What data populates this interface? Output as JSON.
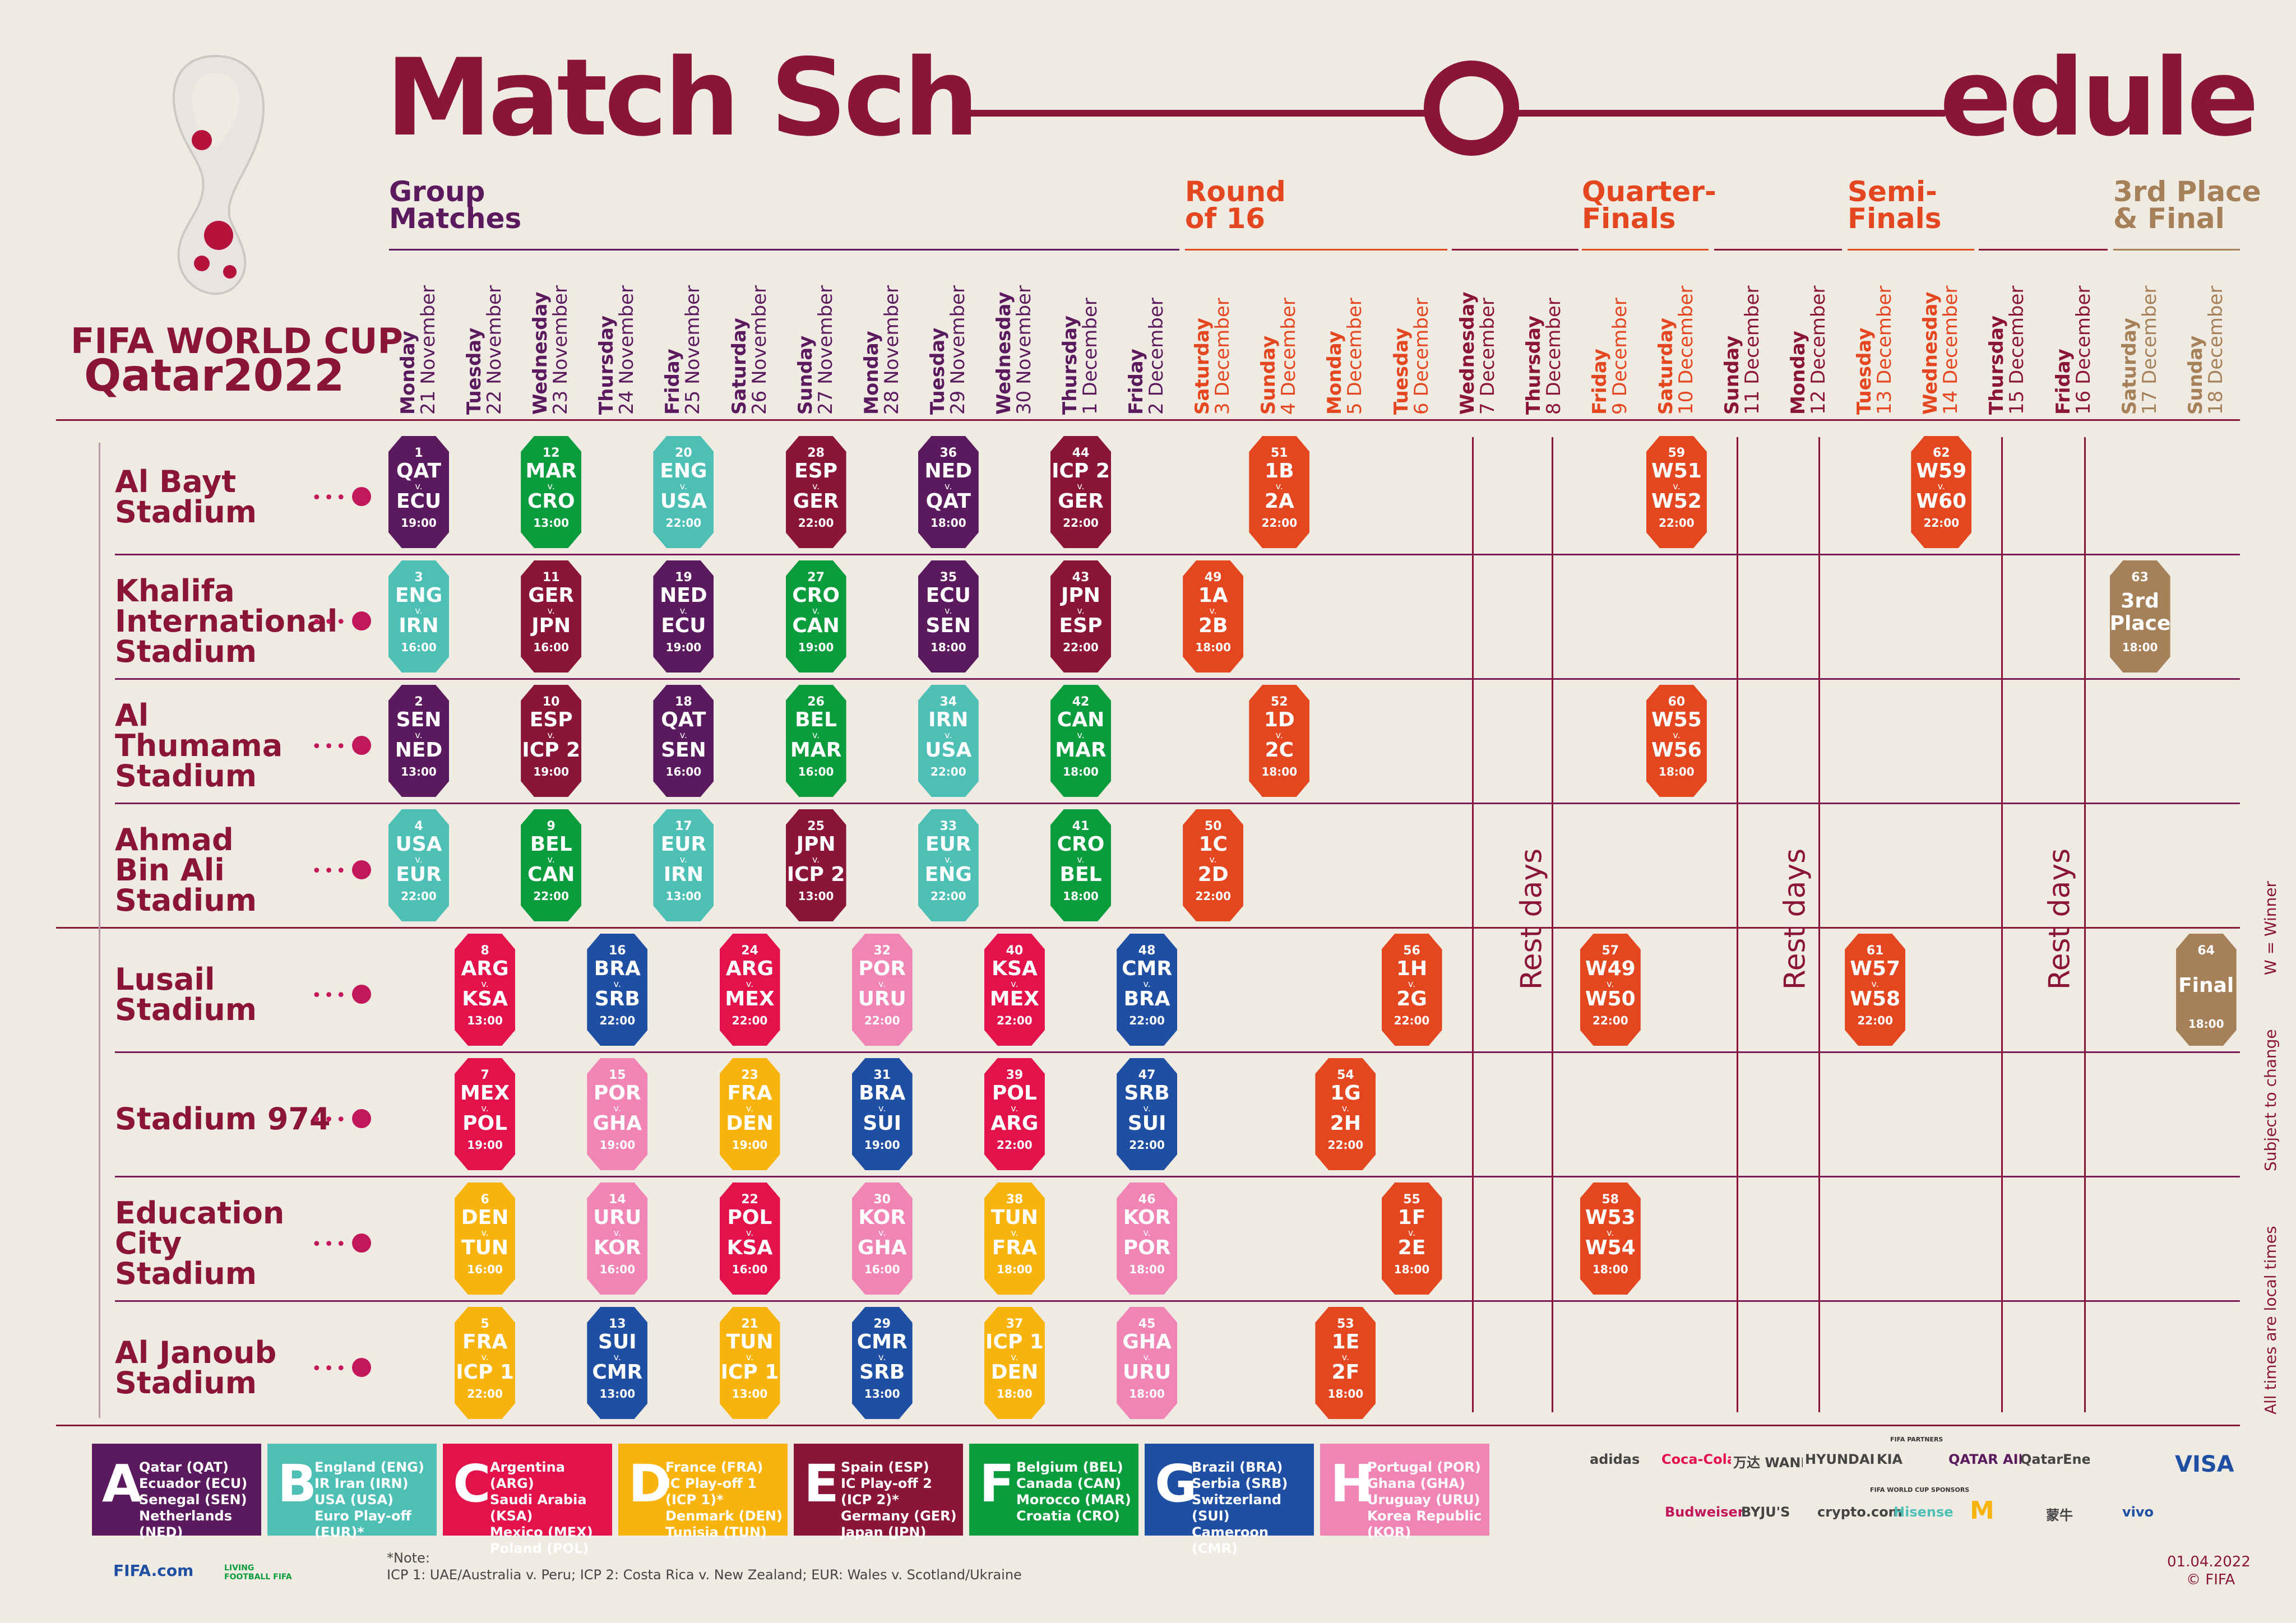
{
  "title": {
    "left": "Match Sch",
    "right": "edule"
  },
  "brand": {
    "line1": "FIFA WORLD CUP",
    "line2": "Qatar2022"
  },
  "stages": [
    {
      "label": "Group\nMatches",
      "color": "#5b1a5e"
    },
    {
      "label": "Round\nof 16",
      "color": "#e4471f"
    },
    {
      "label": "Quarter-\nFinals",
      "color": "#e4471f"
    },
    {
      "label": "Semi-\nFinals",
      "color": "#e4471f"
    },
    {
      "label": "3rd Place\n& Final",
      "color": "#a68058"
    }
  ],
  "days": [
    {
      "wd": "Monday",
      "dt": "21 November",
      "color": "#5b1a5e"
    },
    {
      "wd": "Tuesday",
      "dt": "22 November",
      "color": "#5b1a5e"
    },
    {
      "wd": "Wednesday",
      "dt": "23 November",
      "color": "#5b1a5e"
    },
    {
      "wd": "Thursday",
      "dt": "24 November",
      "color": "#5b1a5e"
    },
    {
      "wd": "Friday",
      "dt": "25 November",
      "color": "#5b1a5e"
    },
    {
      "wd": "Saturday",
      "dt": "26 November",
      "color": "#5b1a5e"
    },
    {
      "wd": "Sunday",
      "dt": "27 November",
      "color": "#5b1a5e"
    },
    {
      "wd": "Monday",
      "dt": "28 November",
      "color": "#5b1a5e"
    },
    {
      "wd": "Tuesday",
      "dt": "29 November",
      "color": "#5b1a5e"
    },
    {
      "wd": "Wednesday",
      "dt": "30 November",
      "color": "#5b1a5e"
    },
    {
      "wd": "Thursday",
      "dt": "1 December",
      "color": "#5b1a5e"
    },
    {
      "wd": "Friday",
      "dt": "2 December",
      "color": "#5b1a5e"
    },
    {
      "wd": "Saturday",
      "dt": "3 December",
      "color": "#e4471f"
    },
    {
      "wd": "Sunday",
      "dt": "4 December",
      "color": "#e4471f"
    },
    {
      "wd": "Monday",
      "dt": "5 December",
      "color": "#e4471f"
    },
    {
      "wd": "Tuesday",
      "dt": "6 December",
      "color": "#e4471f"
    },
    {
      "wd": "Wednesday",
      "dt": "7 December",
      "color": "#8a1538"
    },
    {
      "wd": "Thursday",
      "dt": "8 December",
      "color": "#8a1538"
    },
    {
      "wd": "Friday",
      "dt": "9 December",
      "color": "#e4471f"
    },
    {
      "wd": "Saturday",
      "dt": "10 December",
      "color": "#e4471f"
    },
    {
      "wd": "Sunday",
      "dt": "11 December",
      "color": "#8a1538"
    },
    {
      "wd": "Monday",
      "dt": "12 December",
      "color": "#8a1538"
    },
    {
      "wd": "Tuesday",
      "dt": "13 December",
      "color": "#e4471f"
    },
    {
      "wd": "Wednesday",
      "dt": "14 December",
      "color": "#e4471f"
    },
    {
      "wd": "Thursday",
      "dt": "15 December",
      "color": "#8a1538"
    },
    {
      "wd": "Friday",
      "dt": "16 December",
      "color": "#8a1538"
    },
    {
      "wd": "Saturday",
      "dt": "17 December",
      "color": "#a68058"
    },
    {
      "wd": "Sunday",
      "dt": "18 December",
      "color": "#a68058"
    }
  ],
  "venues": [
    "Al Bayt\nStadium",
    "Khalifa\nInternational\nStadium",
    "Al\nThumama\nStadium",
    "Ahmad\nBin Ali\nStadium",
    "Lusail\nStadium",
    "Stadium 974",
    "Education\nCity\nStadium",
    "Al Janoub\nStadium"
  ],
  "rest_label": "Rest days",
  "matches": [
    {
      "n": "1",
      "a": "QAT",
      "b": "ECU",
      "t": "19:00",
      "d": 0,
      "v": 0,
      "c": "#5b1a5e"
    },
    {
      "n": "12",
      "a": "MAR",
      "b": "CRO",
      "t": "13:00",
      "d": 2,
      "v": 0,
      "c": "#0b9c3d"
    },
    {
      "n": "20",
      "a": "ENG",
      "b": "USA",
      "t": "22:00",
      "d": 4,
      "v": 0,
      "c": "#4dbfb4"
    },
    {
      "n": "28",
      "a": "ESP",
      "b": "GER",
      "t": "22:00",
      "d": 6,
      "v": 0,
      "c": "#8a1538"
    },
    {
      "n": "36",
      "a": "NED",
      "b": "QAT",
      "t": "18:00",
      "d": 8,
      "v": 0,
      "c": "#5b1a5e"
    },
    {
      "n": "44",
      "a": "ICP 2",
      "b": "GER",
      "t": "22:00",
      "d": 10,
      "v": 0,
      "c": "#8a1538"
    },
    {
      "n": "51",
      "a": "1B",
      "b": "2A",
      "t": "22:00",
      "d": 13,
      "v": 0,
      "c": "#e4471f"
    },
    {
      "n": "59",
      "a": "W51",
      "b": "W52",
      "t": "22:00",
      "d": 19,
      "v": 0,
      "c": "#e4471f"
    },
    {
      "n": "62",
      "a": "W59",
      "b": "W60",
      "t": "22:00",
      "d": 23,
      "v": 0,
      "c": "#e4471f"
    },
    {
      "n": "3",
      "a": "ENG",
      "b": "IRN",
      "t": "16:00",
      "d": 0,
      "v": 1,
      "c": "#4dbfb4"
    },
    {
      "n": "11",
      "a": "GER",
      "b": "JPN",
      "t": "16:00",
      "d": 2,
      "v": 1,
      "c": "#8a1538"
    },
    {
      "n": "19",
      "a": "NED",
      "b": "ECU",
      "t": "19:00",
      "d": 4,
      "v": 1,
      "c": "#5b1a5e"
    },
    {
      "n": "27",
      "a": "CRO",
      "b": "CAN",
      "t": "19:00",
      "d": 6,
      "v": 1,
      "c": "#0b9c3d"
    },
    {
      "n": "35",
      "a": "ECU",
      "b": "SEN",
      "t": "18:00",
      "d": 8,
      "v": 1,
      "c": "#5b1a5e"
    },
    {
      "n": "43",
      "a": "JPN",
      "b": "ESP",
      "t": "22:00",
      "d": 10,
      "v": 1,
      "c": "#8a1538"
    },
    {
      "n": "49",
      "a": "1A",
      "b": "2B",
      "t": "18:00",
      "d": 12,
      "v": 1,
      "c": "#e4471f"
    },
    {
      "n": "63",
      "a": "3rd",
      "b": "Place",
      "t": "18:00",
      "d": 26,
      "v": 1,
      "c": "#a68058",
      "special": true
    },
    {
      "n": "2",
      "a": "SEN",
      "b": "NED",
      "t": "13:00",
      "d": 0,
      "v": 2,
      "c": "#5b1a5e"
    },
    {
      "n": "10",
      "a": "ESP",
      "b": "ICP 2",
      "t": "19:00",
      "d": 2,
      "v": 2,
      "c": "#8a1538"
    },
    {
      "n": "18",
      "a": "QAT",
      "b": "SEN",
      "t": "16:00",
      "d": 4,
      "v": 2,
      "c": "#5b1a5e"
    },
    {
      "n": "26",
      "a": "BEL",
      "b": "MAR",
      "t": "16:00",
      "d": 6,
      "v": 2,
      "c": "#0b9c3d"
    },
    {
      "n": "34",
      "a": "IRN",
      "b": "USA",
      "t": "22:00",
      "d": 8,
      "v": 2,
      "c": "#4dbfb4"
    },
    {
      "n": "42",
      "a": "CAN",
      "b": "MAR",
      "t": "18:00",
      "d": 10,
      "v": 2,
      "c": "#0b9c3d"
    },
    {
      "n": "52",
      "a": "1D",
      "b": "2C",
      "t": "18:00",
      "d": 13,
      "v": 2,
      "c": "#e4471f"
    },
    {
      "n": "60",
      "a": "W55",
      "b": "W56",
      "t": "18:00",
      "d": 19,
      "v": 2,
      "c": "#e4471f"
    },
    {
      "n": "4",
      "a": "USA",
      "b": "EUR",
      "t": "22:00",
      "d": 0,
      "v": 3,
      "c": "#4dbfb4"
    },
    {
      "n": "9",
      "a": "BEL",
      "b": "CAN",
      "t": "22:00",
      "d": 2,
      "v": 3,
      "c": "#0b9c3d"
    },
    {
      "n": "17",
      "a": "EUR",
      "b": "IRN",
      "t": "13:00",
      "d": 4,
      "v": 3,
      "c": "#4dbfb4"
    },
    {
      "n": "25",
      "a": "JPN",
      "b": "ICP 2",
      "t": "13:00",
      "d": 6,
      "v": 3,
      "c": "#8a1538"
    },
    {
      "n": "33",
      "a": "EUR",
      "b": "ENG",
      "t": "22:00",
      "d": 8,
      "v": 3,
      "c": "#4dbfb4"
    },
    {
      "n": "41",
      "a": "CRO",
      "b": "BEL",
      "t": "18:00",
      "d": 10,
      "v": 3,
      "c": "#0b9c3d"
    },
    {
      "n": "50",
      "a": "1C",
      "b": "2D",
      "t": "22:00",
      "d": 12,
      "v": 3,
      "c": "#e4471f"
    },
    {
      "n": "8",
      "a": "ARG",
      "b": "KSA",
      "t": "13:00",
      "d": 1,
      "v": 4,
      "c": "#e3124b"
    },
    {
      "n": "16",
      "a": "BRA",
      "b": "SRB",
      "t": "22:00",
      "d": 3,
      "v": 4,
      "c": "#1f4fa3"
    },
    {
      "n": "24",
      "a": "ARG",
      "b": "MEX",
      "t": "22:00",
      "d": 5,
      "v": 4,
      "c": "#e3124b"
    },
    {
      "n": "32",
      "a": "POR",
      "b": "URU",
      "t": "22:00",
      "d": 7,
      "v": 4,
      "c": "#ef84b5"
    },
    {
      "n": "40",
      "a": "KSA",
      "b": "MEX",
      "t": "22:00",
      "d": 9,
      "v": 4,
      "c": "#e3124b"
    },
    {
      "n": "48",
      "a": "CMR",
      "b": "BRA",
      "t": "22:00",
      "d": 11,
      "v": 4,
      "c": "#1f4fa3"
    },
    {
      "n": "56",
      "a": "1H",
      "b": "2G",
      "t": "22:00",
      "d": 15,
      "v": 4,
      "c": "#e4471f"
    },
    {
      "n": "57",
      "a": "W49",
      "b": "W50",
      "t": "22:00",
      "d": 18,
      "v": 4,
      "c": "#e4471f"
    },
    {
      "n": "61",
      "a": "W57",
      "b": "W58",
      "t": "22:00",
      "d": 22,
      "v": 4,
      "c": "#e4471f"
    },
    {
      "n": "64",
      "a": "Final",
      "b": "",
      "t": "18:00",
      "d": 27,
      "v": 4,
      "c": "#a68058",
      "special": true
    },
    {
      "n": "7",
      "a": "MEX",
      "b": "POL",
      "t": "19:00",
      "d": 1,
      "v": 5,
      "c": "#e3124b"
    },
    {
      "n": "15",
      "a": "POR",
      "b": "GHA",
      "t": "19:00",
      "d": 3,
      "v": 5,
      "c": "#ef84b5"
    },
    {
      "n": "23",
      "a": "FRA",
      "b": "DEN",
      "t": "19:00",
      "d": 5,
      "v": 5,
      "c": "#f8b40d"
    },
    {
      "n": "31",
      "a": "BRA",
      "b": "SUI",
      "t": "19:00",
      "d": 7,
      "v": 5,
      "c": "#1f4fa3"
    },
    {
      "n": "39",
      "a": "POL",
      "b": "ARG",
      "t": "22:00",
      "d": 9,
      "v": 5,
      "c": "#e3124b"
    },
    {
      "n": "47",
      "a": "SRB",
      "b": "SUI",
      "t": "22:00",
      "d": 11,
      "v": 5,
      "c": "#1f4fa3"
    },
    {
      "n": "54",
      "a": "1G",
      "b": "2H",
      "t": "22:00",
      "d": 14,
      "v": 5,
      "c": "#e4471f"
    },
    {
      "n": "6",
      "a": "DEN",
      "b": "TUN",
      "t": "16:00",
      "d": 1,
      "v": 6,
      "c": "#f8b40d"
    },
    {
      "n": "14",
      "a": "URU",
      "b": "KOR",
      "t": "16:00",
      "d": 3,
      "v": 6,
      "c": "#ef84b5"
    },
    {
      "n": "22",
      "a": "POL",
      "b": "KSA",
      "t": "16:00",
      "d": 5,
      "v": 6,
      "c": "#e3124b"
    },
    {
      "n": "30",
      "a": "KOR",
      "b": "GHA",
      "t": "16:00",
      "d": 7,
      "v": 6,
      "c": "#ef84b5"
    },
    {
      "n": "38",
      "a": "TUN",
      "b": "FRA",
      "t": "18:00",
      "d": 9,
      "v": 6,
      "c": "#f8b40d"
    },
    {
      "n": "46",
      "a": "KOR",
      "b": "POR",
      "t": "18:00",
      "d": 11,
      "v": 6,
      "c": "#ef84b5"
    },
    {
      "n": "55",
      "a": "1F",
      "b": "2E",
      "t": "18:00",
      "d": 15,
      "v": 6,
      "c": "#e4471f"
    },
    {
      "n": "58",
      "a": "W53",
      "b": "W54",
      "t": "18:00",
      "d": 18,
      "v": 6,
      "c": "#e4471f"
    },
    {
      "n": "5",
      "a": "FRA",
      "b": "ICP 1",
      "t": "22:00",
      "d": 1,
      "v": 7,
      "c": "#f8b40d"
    },
    {
      "n": "13",
      "a": "SUI",
      "b": "CMR",
      "t": "13:00",
      "d": 3,
      "v": 7,
      "c": "#1f4fa3"
    },
    {
      "n": "21",
      "a": "TUN",
      "b": "ICP 1",
      "t": "13:00",
      "d": 5,
      "v": 7,
      "c": "#f8b40d"
    },
    {
      "n": "29",
      "a": "CMR",
      "b": "SRB",
      "t": "13:00",
      "d": 7,
      "v": 7,
      "c": "#1f4fa3"
    },
    {
      "n": "37",
      "a": "ICP 1",
      "b": "DEN",
      "t": "18:00",
      "d": 9,
      "v": 7,
      "c": "#f8b40d"
    },
    {
      "n": "45",
      "a": "GHA",
      "b": "URU",
      "t": "18:00",
      "d": 11,
      "v": 7,
      "c": "#ef84b5"
    },
    {
      "n": "53",
      "a": "1E",
      "b": "2F",
      "t": "18:00",
      "d": 14,
      "v": 7,
      "c": "#e4471f"
    }
  ],
  "groups": [
    {
      "letter": "A",
      "color": "#5b1a5e",
      "teams": "Qatar (QAT)\nEcuador (ECU)\nSenegal (SEN)\nNetherlands (NED)"
    },
    {
      "letter": "B",
      "color": "#4dbfb4",
      "teams": "England (ENG)\nIR Iran (IRN)\nUSA (USA)\nEuro Play-off (EUR)*"
    },
    {
      "letter": "C",
      "color": "#e3124b",
      "teams": "Argentina (ARG)\nSaudi Arabia (KSA)\nMexico (MEX)\nPoland (POL)"
    },
    {
      "letter": "D",
      "color": "#f8b40d",
      "teams": "France (FRA)\nIC Play-off 1 (ICP 1)*\nDenmark (DEN)\nTunisia (TUN)"
    },
    {
      "letter": "E",
      "color": "#8a1538",
      "teams": "Spain (ESP)\nIC Play-off 2 (ICP 2)*\nGermany (GER)\nJapan (JPN)"
    },
    {
      "letter": "F",
      "color": "#0b9c3d",
      "teams": "Belgium (BEL)\nCanada (CAN)\nMorocco (MAR)\nCroatia (CRO)"
    },
    {
      "letter": "G",
      "color": "#1f4fa3",
      "teams": "Brazil (BRA)\nSerbia (SRB)\nSwitzerland (SUI)\nCameroon (CMR)"
    },
    {
      "letter": "H",
      "color": "#ef84b5",
      "teams": "Portugal (POR)\nGhana (GHA)\nUruguay (URU)\nKorea Republic (KOR)"
    }
  ],
  "note": {
    "label": "*Note:",
    "text": "ICP 1: UAE/Australia v. Peru;  ICP 2: Costa Rica v. New Zealand;  EUR: Wales v. Scotland/Ukraine"
  },
  "footer": {
    "fifa": "FIFA.com",
    "living": "LIVING FOOTBALL FIFA",
    "date": "01.04.2022",
    "copyright": "© FIFA"
  },
  "side_notes": [
    "W = Winner",
    "Subject to change",
    "All times are local times"
  ],
  "sponsors": {
    "partners_label": "FIFA PARTNERS",
    "partners": [
      "adidas",
      "Coca-Cola",
      "万达 WANDA",
      "HYUNDAI",
      "KIA",
      "QATAR AIRWAYS",
      "QatarEnergy",
      "VISA"
    ],
    "sponsors_label": "FIFA WORLD CUP SPONSORS",
    "sponsors": [
      "Budweiser",
      "BYJU'S",
      "crypto.com",
      "Hisense",
      "M",
      "蒙牛",
      "vivo"
    ]
  },
  "vs": "v."
}
